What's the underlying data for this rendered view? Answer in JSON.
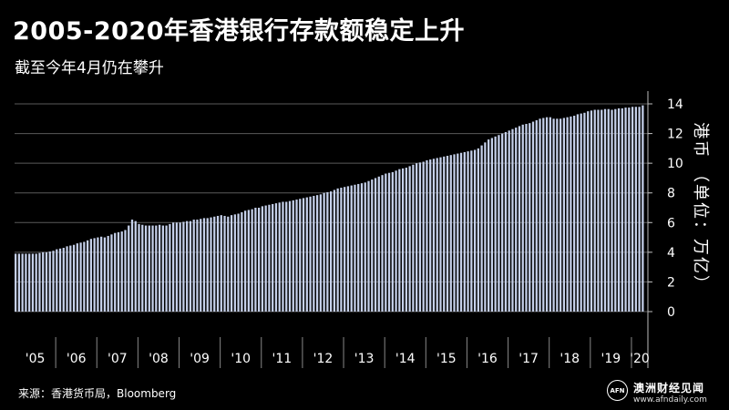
{
  "header": {
    "title": "2005-2020年香港银行存款额稳定上升",
    "subtitle": "截至今年4月仍在攀升"
  },
  "footer": {
    "source": "来源：香港货币局，Bloomberg"
  },
  "brand": {
    "logo_text": "AFN",
    "name": "澳洲财经见闻",
    "url": "www.afndaily.com"
  },
  "colors": {
    "background": "#000000",
    "bar": "#c5d0ea",
    "grid": "#5a5a5a",
    "text": "#ffffff"
  },
  "chart_data": {
    "type": "bar",
    "title": "2005-2020年香港银行存款额稳定上升",
    "subtitle": "截至今年4月仍在攀升",
    "xlabel": "",
    "ylabel": "港币 （单位：万亿）",
    "ylim": [
      0,
      14
    ],
    "yticks": [
      "0",
      "2",
      "4",
      "6",
      "8",
      "10",
      "12",
      "14"
    ],
    "grid": true,
    "legend": "none",
    "period": "monthly",
    "x_tick_labels": [
      "'05",
      "'06",
      "'07",
      "'08",
      "'09",
      "'10",
      "'11",
      "'12",
      "'13",
      "'14",
      "'15",
      "'16",
      "'17",
      "'18",
      "'19",
      "'20"
    ],
    "series": [
      {
        "values": [
          3.9,
          3.9,
          3.9,
          3.9,
          3.9,
          3.9,
          3.9,
          3.95,
          4.0,
          4.0,
          4.05,
          4.1,
          4.2,
          4.25,
          4.3,
          4.4,
          4.45,
          4.5,
          4.6,
          4.65,
          4.7,
          4.8,
          4.9,
          4.95,
          5.0,
          5.05,
          5.0,
          5.1,
          5.2,
          5.3,
          5.35,
          5.4,
          5.5,
          5.8,
          6.2,
          6.1,
          5.9,
          5.85,
          5.8,
          5.8,
          5.8,
          5.8,
          5.85,
          5.8,
          5.8,
          5.9,
          6.0,
          6.0,
          6.0,
          6.05,
          6.1,
          6.1,
          6.2,
          6.2,
          6.25,
          6.3,
          6.3,
          6.35,
          6.4,
          6.45,
          6.5,
          6.45,
          6.4,
          6.5,
          6.55,
          6.6,
          6.7,
          6.8,
          6.85,
          6.9,
          7.0,
          7.0,
          7.1,
          7.15,
          7.2,
          7.25,
          7.3,
          7.35,
          7.4,
          7.4,
          7.45,
          7.5,
          7.55,
          7.6,
          7.65,
          7.7,
          7.75,
          7.8,
          7.85,
          7.9,
          8.0,
          8.05,
          8.1,
          8.2,
          8.3,
          8.35,
          8.4,
          8.45,
          8.5,
          8.55,
          8.6,
          8.65,
          8.7,
          8.8,
          8.9,
          9.0,
          9.1,
          9.2,
          9.3,
          9.35,
          9.4,
          9.5,
          9.6,
          9.65,
          9.7,
          9.8,
          9.9,
          10.0,
          10.05,
          10.1,
          10.2,
          10.25,
          10.3,
          10.35,
          10.4,
          10.45,
          10.5,
          10.55,
          10.6,
          10.65,
          10.7,
          10.75,
          10.8,
          10.85,
          10.9,
          11.0,
          11.2,
          11.4,
          11.6,
          11.7,
          11.8,
          11.9,
          12.0,
          12.1,
          12.2,
          12.3,
          12.4,
          12.5,
          12.6,
          12.65,
          12.7,
          12.8,
          12.9,
          13.0,
          13.05,
          13.1,
          13.1,
          13.0,
          13.0,
          13.0,
          13.05,
          13.1,
          13.15,
          13.2,
          13.3,
          13.35,
          13.4,
          13.5,
          13.55,
          13.6,
          13.6,
          13.6,
          13.65,
          13.65,
          13.6,
          13.65,
          13.7,
          13.7,
          13.75,
          13.75,
          13.8,
          13.8,
          13.8,
          13.9
        ]
      }
    ]
  }
}
